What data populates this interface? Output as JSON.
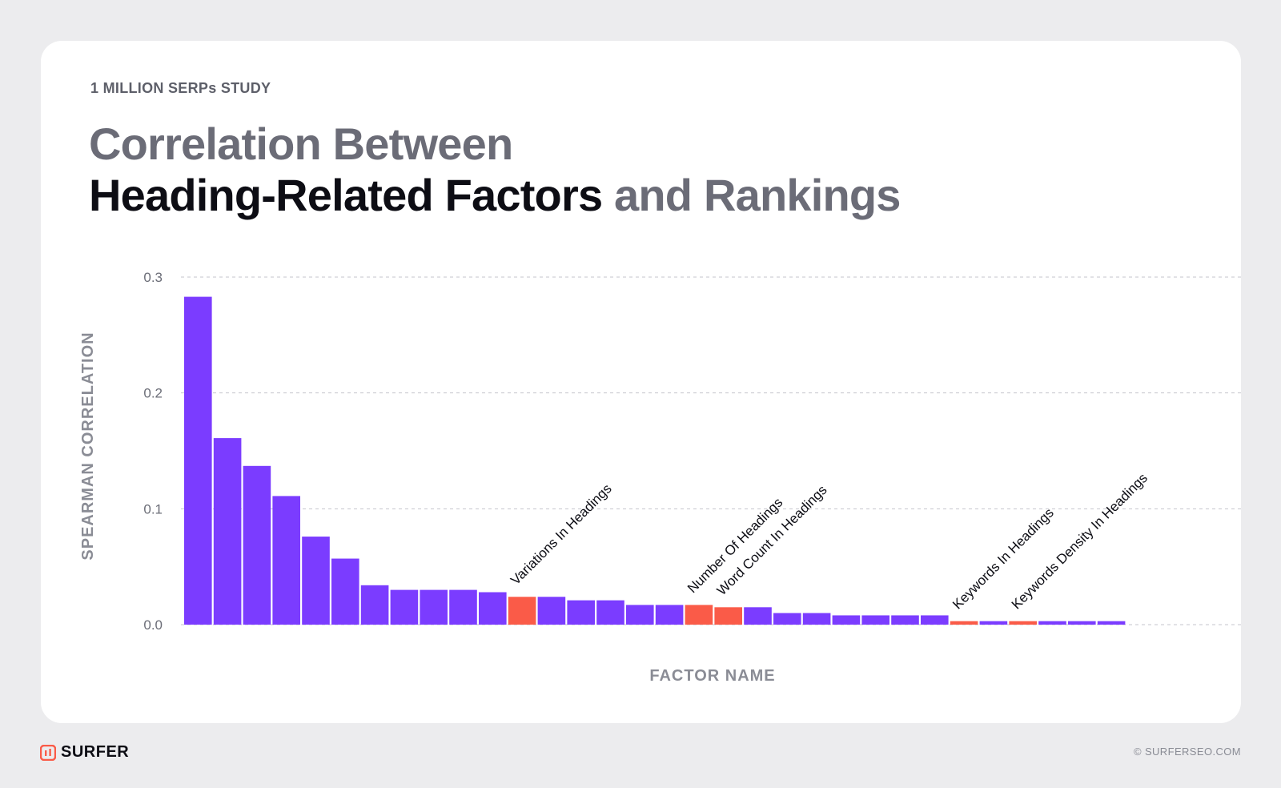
{
  "header": {
    "eyebrow": "1 MILLION SERPs STUDY",
    "title_line1": "Correlation Between",
    "title_line2_highlight": "Heading-Related Factors",
    "title_line2_rest": " and Rankings"
  },
  "footer": {
    "brand": "SURFER",
    "copyright_symbol": "©",
    "copyright": "SURFERSEO.COM"
  },
  "colors": {
    "bar_default": "#7b3cff",
    "bar_highlight": "#fa5b48",
    "grid": "#c4c4cc",
    "axis_label": "#8a8c95",
    "tick_label": "#6b6d77",
    "brand": "#fa5b48"
  },
  "chart_data": {
    "type": "bar",
    "title": "",
    "xlabel": "FACTOR NAME",
    "ylabel": "SPEARMAN CORRELATION",
    "ylim": [
      0,
      0.3
    ],
    "yticks": [
      0.0,
      0.1,
      0.2,
      0.3
    ],
    "ytick_labels": [
      "0.0",
      "0.1",
      "0.2",
      "0.3"
    ],
    "grid": true,
    "values": [
      0.283,
      0.161,
      0.137,
      0.111,
      0.076,
      0.057,
      0.034,
      0.03,
      0.03,
      0.03,
      0.028,
      0.024,
      0.024,
      0.021,
      0.021,
      0.017,
      0.017,
      0.017,
      0.015,
      0.015,
      0.01,
      0.01,
      0.008,
      0.008,
      0.008,
      0.008,
      0.003,
      0.003,
      0.003,
      0.003,
      0.003,
      0.003
    ],
    "highlighted": [
      false,
      false,
      false,
      false,
      false,
      false,
      false,
      false,
      false,
      false,
      false,
      true,
      false,
      false,
      false,
      false,
      false,
      true,
      true,
      false,
      false,
      false,
      false,
      false,
      false,
      false,
      true,
      false,
      true,
      false,
      false,
      false
    ],
    "annotations": [
      {
        "index": 11,
        "label": "Variations In Headings"
      },
      {
        "index": 17,
        "label": "Number Of Headings"
      },
      {
        "index": 18,
        "label": "Word Count In Headings"
      },
      {
        "index": 26,
        "label": "Keywords In Headings"
      },
      {
        "index": 28,
        "label": "Keywords Density In Headings"
      }
    ]
  }
}
